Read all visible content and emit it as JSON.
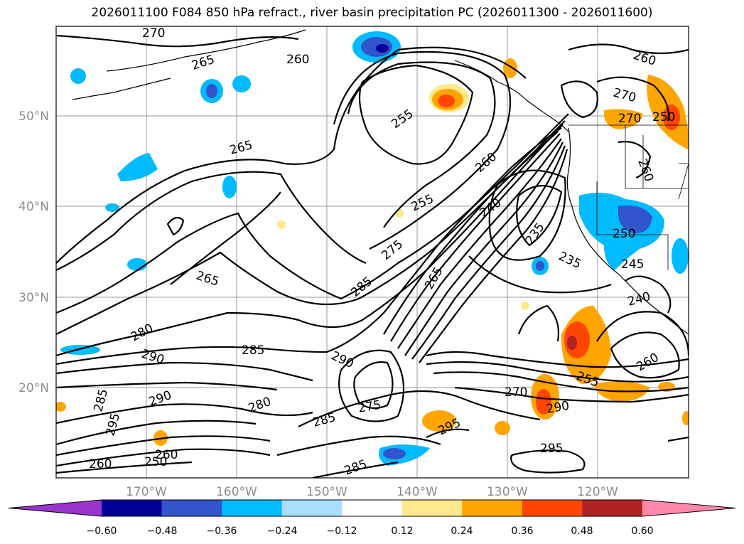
{
  "title": "2026011100 F084 850 hPa refract., river basin precipitation PC (2026011300 - 2026011600)",
  "lon_labels": [
    "170°W",
    "160°W",
    "150°W",
    "140°W",
    "130°W",
    "120°W"
  ],
  "lat_labels": [
    "50°N",
    "40°N",
    "30°N",
    "20°N"
  ],
  "contour_labels": [
    "270",
    "265",
    "260",
    "255",
    "265",
    "260",
    "255",
    "240",
    "235",
    "235",
    "250",
    "245",
    "240",
    "265",
    "275",
    "285",
    "280",
    "290",
    "285",
    "290",
    "280",
    "285",
    "290",
    "295",
    "275",
    "285",
    "295",
    "270",
    "290",
    "295",
    "285",
    "260",
    "255",
    "250",
    "260",
    "265",
    "270",
    "260",
    "270",
    "260",
    "250",
    "260"
  ],
  "colorbar": {
    "ticks": [
      "−0.60",
      "−0.48",
      "−0.36",
      "−0.24",
      "−0.12",
      "0.12",
      "0.24",
      "0.36",
      "0.48",
      "0.60"
    ],
    "colors": [
      "#9933cc",
      "#000099",
      "#3355cc",
      "#00bbff",
      "#aadeff",
      "#ffffff",
      "#ffe98a",
      "#ffa500",
      "#ff4500",
      "#b22222",
      "#ff88aa"
    ]
  }
}
